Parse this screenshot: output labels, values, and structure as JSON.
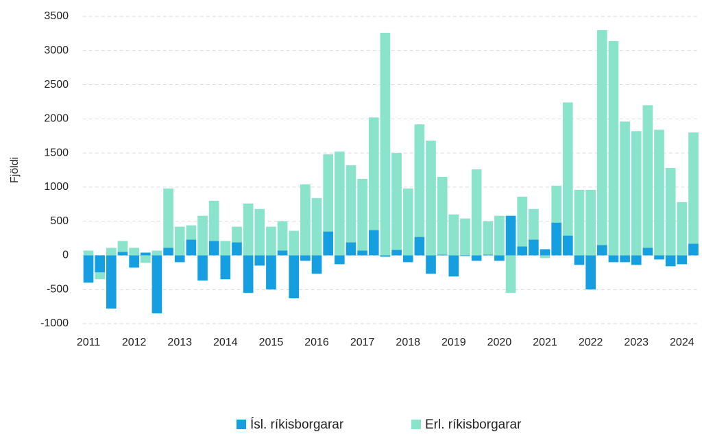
{
  "chart_data": {
    "type": "bar",
    "stacked": true,
    "y_label": "Fjöldi",
    "categories": [
      "2011",
      null,
      null,
      null,
      "2012",
      null,
      null,
      null,
      "2013",
      null,
      null,
      null,
      "2014",
      null,
      null,
      null,
      "2015",
      null,
      null,
      null,
      "2016",
      null,
      null,
      null,
      "2017",
      null,
      null,
      null,
      "2018",
      null,
      null,
      null,
      "2019",
      null,
      null,
      null,
      "2020",
      null,
      null,
      null,
      "2021",
      null,
      null,
      null,
      "2022",
      null,
      null,
      null,
      "2023",
      null,
      null,
      null,
      "2024",
      null
    ],
    "series": [
      {
        "name": "Ísl. ríkisborgarar",
        "color": "#169fe0",
        "values": [
          -400,
          -250,
          -780,
          50,
          -180,
          40,
          -850,
          110,
          -100,
          230,
          -370,
          210,
          -350,
          190,
          -550,
          -150,
          -500,
          70,
          -630,
          -80,
          -270,
          350,
          -130,
          190,
          70,
          370,
          -20,
          80,
          -100,
          270,
          -270,
          10,
          -310,
          -10,
          -80,
          10,
          -80,
          580,
          130,
          230,
          90,
          480,
          290,
          -140,
          -500,
          150,
          -100,
          -100,
          -140,
          110,
          -60,
          -160,
          -130,
          170
        ]
      },
      {
        "name": "Erl. ríkisborgarar",
        "color": "#8ae3cb",
        "values": [
          70,
          -100,
          110,
          160,
          110,
          -110,
          70,
          870,
          420,
          210,
          580,
          590,
          210,
          230,
          760,
          680,
          420,
          430,
          360,
          1040,
          840,
          1130,
          1520,
          1130,
          1050,
          1650,
          3260,
          1420,
          980,
          1650,
          1680,
          1140,
          600,
          540,
          1260,
          490,
          580,
          -550,
          730,
          450,
          -40,
          540,
          1950,
          960,
          960,
          3150,
          3140,
          1960,
          1820,
          2090,
          1840,
          1280,
          780,
          1630
        ]
      }
    ],
    "ylim": [
      -1000,
      3500
    ],
    "yticks": [
      -1000,
      -500,
      0,
      500,
      1000,
      1500,
      2000,
      2500,
      3000,
      3500
    ],
    "grid": true,
    "legend": "bottom"
  }
}
